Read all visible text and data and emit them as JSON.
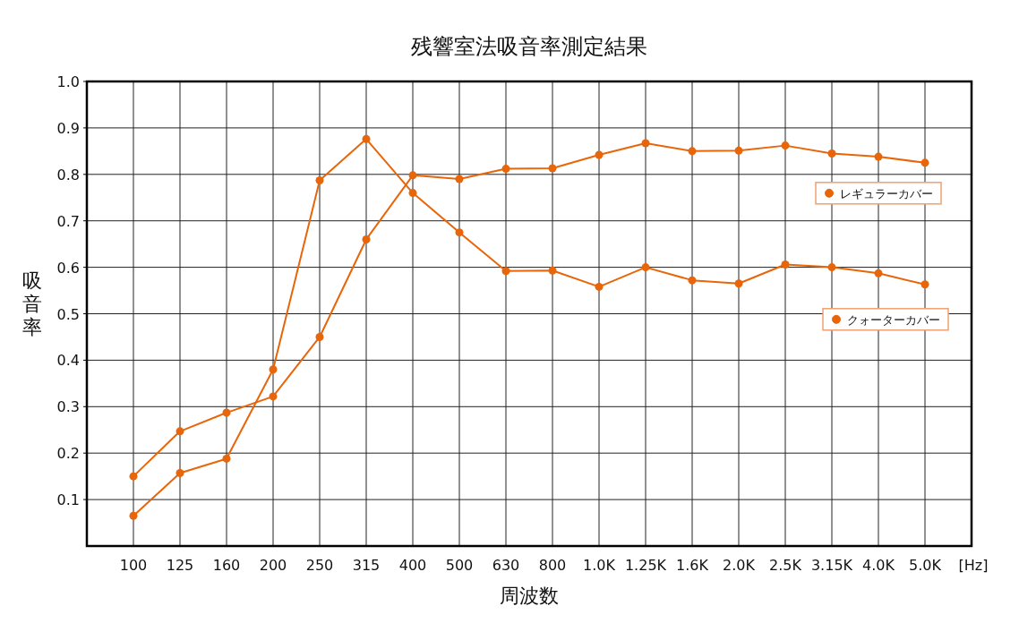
{
  "chart_data": {
    "type": "line",
    "title": "残響室法吸音率測定結果",
    "xlabel": "周波数",
    "ylabel": "吸音率",
    "categories": [
      "100",
      "125",
      "160",
      "200",
      "250",
      "315",
      "400",
      "500",
      "630",
      "800",
      "1.0K",
      "1.25K",
      "1.6K",
      "2.0K",
      "2.5K",
      "3.15K",
      "4.0K",
      "5.0K"
    ],
    "series": [
      {
        "name": "レギュラーカバー",
        "color": "#e8650a",
        "values": [
          0.15,
          0.247,
          0.287,
          0.322,
          0.45,
          0.66,
          0.798,
          0.79,
          0.812,
          0.813,
          0.842,
          0.867,
          0.85,
          0.851,
          0.862,
          0.845,
          0.838,
          0.825
        ]
      },
      {
        "name": "クォーターカバー",
        "color": "#e8650a",
        "values": [
          0.065,
          0.157,
          0.188,
          0.38,
          0.787,
          0.876,
          0.76,
          0.675,
          0.592,
          0.593,
          0.558,
          0.6,
          0.572,
          0.565,
          0.606,
          0.6,
          0.587,
          0.563
        ]
      }
    ],
    "ylim": [
      0,
      1.0
    ],
    "yticks": [
      0.1,
      0.2,
      0.3,
      0.4,
      0.5,
      0.6,
      0.7,
      0.8,
      0.9,
      {
        "value": 1.0,
        "label": "1.0"
      }
    ],
    "annotations": [
      "[Hz]"
    ],
    "grid": true,
    "legend": "right",
    "marker": "circle",
    "line_style": "solid"
  }
}
